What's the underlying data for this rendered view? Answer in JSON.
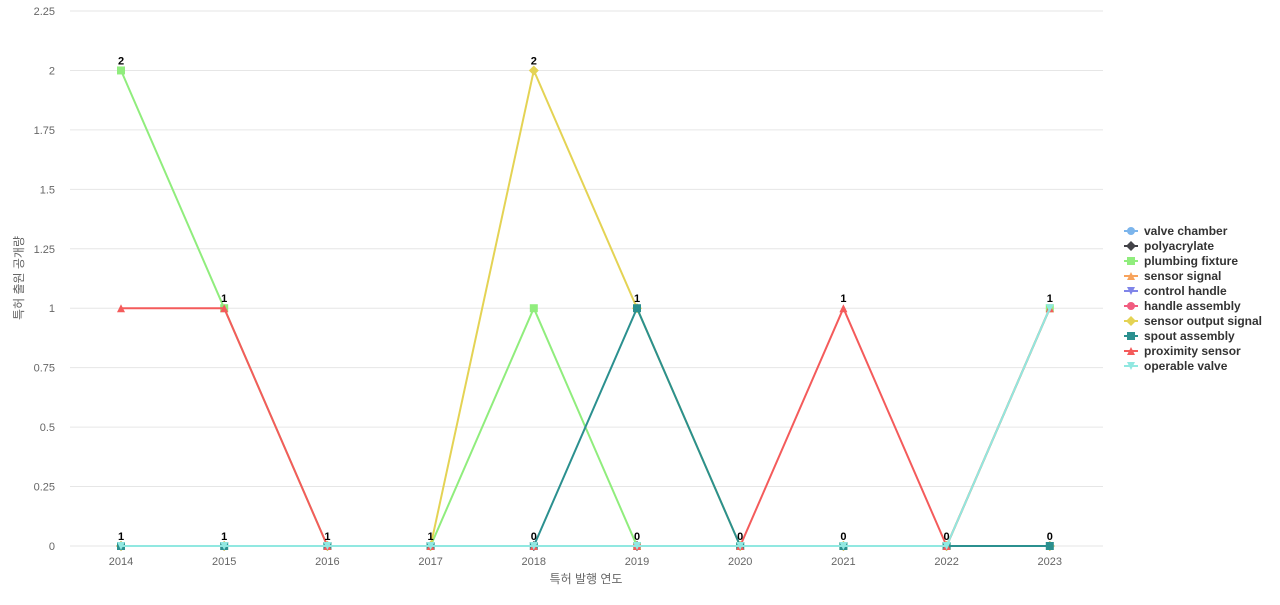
{
  "chart_data": {
    "type": "line",
    "title": "",
    "xlabel": "특허 발행 연도",
    "ylabel": "특허 출원 공개량",
    "ylim": [
      0,
      2.25
    ],
    "yticks": [
      "0",
      "0.25",
      "0.5",
      "0.75",
      "1",
      "1.25",
      "1.5",
      "1.75",
      "2",
      "2.25"
    ],
    "categories": [
      "2014",
      "2015",
      "2016",
      "2017",
      "2018",
      "2019",
      "2020",
      "2021",
      "2022",
      "2023"
    ],
    "grid": true,
    "legend_position": "right",
    "series": [
      {
        "name": "valve chamber",
        "color": "#7cb5ec",
        "marker": "circle",
        "values": [
          0,
          0,
          0,
          0,
          0,
          0,
          0,
          0,
          0,
          0
        ]
      },
      {
        "name": "polyacrylate",
        "color": "#434348",
        "marker": "diamond",
        "values": [
          0,
          0,
          0,
          0,
          0,
          0,
          0,
          0,
          0,
          0
        ]
      },
      {
        "name": "plumbing fixture",
        "color": "#90ed7d",
        "marker": "square",
        "values": [
          2,
          1,
          0,
          0,
          1,
          0,
          0,
          0,
          0,
          1
        ]
      },
      {
        "name": "sensor signal",
        "color": "#f7a35c",
        "marker": "triangle",
        "values": [
          0,
          0,
          0,
          0,
          0,
          0,
          0,
          0,
          0,
          1
        ]
      },
      {
        "name": "control handle",
        "color": "#8085e9",
        "marker": "triangle-down",
        "values": [
          0,
          0,
          0,
          0,
          0,
          0,
          0,
          0,
          0,
          0
        ]
      },
      {
        "name": "handle assembly",
        "color": "#f15c80",
        "marker": "circle",
        "values": [
          0,
          0,
          0,
          0,
          0,
          0,
          0,
          0,
          0,
          0
        ]
      },
      {
        "name": "sensor output signal",
        "color": "#e4d354",
        "marker": "diamond",
        "values": [
          0,
          0,
          0,
          0,
          2,
          1,
          0,
          0,
          0,
          0
        ]
      },
      {
        "name": "spout assembly",
        "color": "#2b908f",
        "marker": "square",
        "values": [
          0,
          0,
          0,
          0,
          0,
          1,
          0,
          0,
          0,
          0
        ]
      },
      {
        "name": "proximity sensor",
        "color": "#f45b5b",
        "marker": "triangle",
        "values": [
          1,
          1,
          0,
          0,
          0,
          0,
          0,
          1,
          0,
          1
        ]
      },
      {
        "name": "operable valve",
        "color": "#91e8e1",
        "marker": "triangle-down",
        "values": [
          0,
          0,
          0,
          0,
          0,
          0,
          0,
          0,
          0,
          1
        ]
      }
    ],
    "data_labels": [
      "2",
      "1",
      "2",
      "1",
      "1",
      "1",
      "1",
      "1",
      "1",
      "1",
      "0",
      "0",
      "0",
      "0",
      "0",
      "0",
      "0",
      "0",
      "0",
      "0"
    ]
  }
}
